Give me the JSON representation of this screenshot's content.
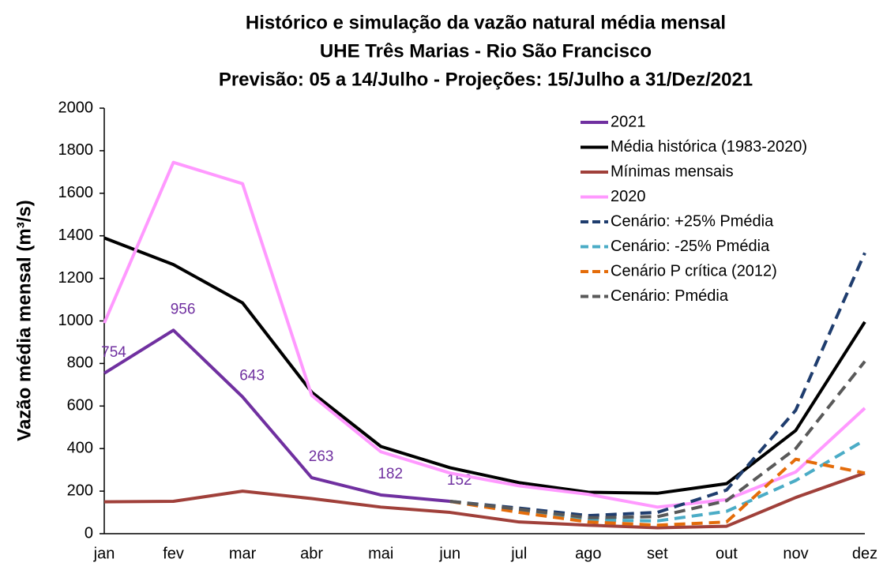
{
  "chart_data": {
    "type": "line",
    "title": [
      "Histórico e simulação da vazão natural média mensal",
      "UHE Três Marias - Rio São Francisco",
      "Previsão: 05 a 14/Julho - Projeções: 15/Julho a 31/Dez/2021"
    ],
    "ylabel": "Vazão média mensal (m³/s)",
    "categories": [
      "jan",
      "fev",
      "mar",
      "abr",
      "mai",
      "jun",
      "jul",
      "ago",
      "set",
      "out",
      "nov",
      "dez"
    ],
    "ylim": [
      0,
      2000
    ],
    "yticks": [
      0,
      200,
      400,
      600,
      800,
      1000,
      1200,
      1400,
      1600,
      1800,
      2000
    ],
    "legend": "top-right",
    "series": [
      {
        "name": "2021",
        "color": "#7030a0",
        "linestyle": "solid",
        "data_labels": true,
        "values": [
          754,
          956,
          643,
          263,
          182,
          152,
          null,
          null,
          null,
          null,
          null,
          null
        ]
      },
      {
        "name": "Média histórica (1983-2020)",
        "color": "#000000",
        "linestyle": "solid",
        "values": [
          1390,
          1265,
          1085,
          665,
          410,
          310,
          240,
          195,
          190,
          235,
          485,
          995
        ]
      },
      {
        "name": "Mínimas mensais",
        "color": "#a0403a",
        "linestyle": "solid",
        "values": [
          150,
          152,
          200,
          165,
          125,
          100,
          55,
          40,
          28,
          35,
          170,
          285
        ]
      },
      {
        "name": "2020",
        "color": "#ff99ff",
        "linestyle": "solid",
        "values": [
          990,
          1745,
          1645,
          650,
          385,
          285,
          225,
          185,
          125,
          160,
          290,
          590
        ]
      },
      {
        "name": "Cenário: +25% Pmédia",
        "color": "#1f3d6e",
        "linestyle": "dashed",
        "values": [
          null,
          null,
          null,
          null,
          null,
          152,
          120,
          85,
          100,
          205,
          580,
          1320
        ]
      },
      {
        "name": "Cenário: -25% Pmédia",
        "color": "#4bacc6",
        "linestyle": "dashed",
        "values": [
          null,
          null,
          null,
          null,
          null,
          152,
          110,
          65,
          60,
          105,
          250,
          440
        ]
      },
      {
        "name": "Cenário P crítica (2012)",
        "color": "#e46c0a",
        "linestyle": "dashed",
        "values": [
          null,
          null,
          null,
          null,
          null,
          152,
          100,
          55,
          40,
          55,
          350,
          285
        ]
      },
      {
        "name": "Cenário: Pmédia",
        "color": "#595959",
        "linestyle": "dashed",
        "values": [
          null,
          null,
          null,
          null,
          null,
          152,
          115,
          75,
          80,
          155,
          400,
          810
        ]
      }
    ]
  }
}
